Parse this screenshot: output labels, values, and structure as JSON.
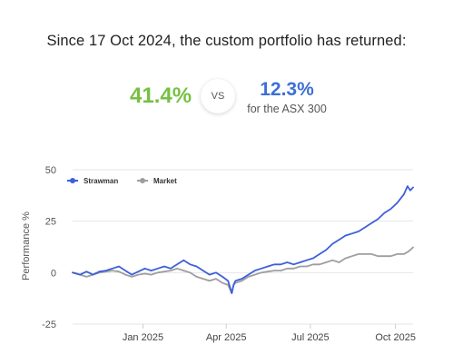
{
  "summary": {
    "headline": "Since 17 Oct 2024, the custom portfolio has returned:",
    "portfolio_return": "41.4%",
    "vs_label": "VS",
    "market_return": "12.3%",
    "market_caption": "for the ASX 300"
  },
  "colors": {
    "portfolio_green": "#76c043",
    "strawman_blue": "#3d5fd9",
    "market_gray": "#9e9e9e",
    "grid": "#e6e6e6"
  },
  "chart_data": {
    "type": "line",
    "ylabel": "Performance %",
    "xlabel": "",
    "ylim": [
      -25,
      50
    ],
    "yticks": [
      -25,
      0,
      25,
      50
    ],
    "xlim": [
      "2024-10-17",
      "2025-10-20"
    ],
    "xticks": [
      {
        "date": "2025-01-01",
        "label": "Jan 2025"
      },
      {
        "date": "2025-04-01",
        "label": "Apr 2025"
      },
      {
        "date": "2025-07-01",
        "label": "Jul 2025"
      },
      {
        "date": "2025-10-01",
        "label": "Oct 2025"
      }
    ],
    "grid": "horizontal",
    "legend_position": "top-left",
    "series": [
      {
        "name": "Strawman",
        "color": "#3d5fd9",
        "points": [
          [
            "2024-10-17",
            0
          ],
          [
            "2024-10-25",
            -1
          ],
          [
            "2024-11-01",
            0.5
          ],
          [
            "2024-11-08",
            -1
          ],
          [
            "2024-11-15",
            0.5
          ],
          [
            "2024-11-22",
            1
          ],
          [
            "2024-11-29",
            2
          ],
          [
            "2024-12-06",
            3
          ],
          [
            "2024-12-13",
            1
          ],
          [
            "2024-12-20",
            -1
          ],
          [
            "2024-12-27",
            0.5
          ],
          [
            "2025-01-03",
            2
          ],
          [
            "2025-01-10",
            1
          ],
          [
            "2025-01-17",
            2
          ],
          [
            "2025-01-24",
            3
          ],
          [
            "2025-01-31",
            2
          ],
          [
            "2025-02-07",
            4
          ],
          [
            "2025-02-14",
            6
          ],
          [
            "2025-02-21",
            4
          ],
          [
            "2025-02-28",
            3
          ],
          [
            "2025-03-07",
            1
          ],
          [
            "2025-03-14",
            -1
          ],
          [
            "2025-03-21",
            0
          ],
          [
            "2025-03-28",
            -2
          ],
          [
            "2025-04-03",
            -4
          ],
          [
            "2025-04-07",
            -10
          ],
          [
            "2025-04-09",
            -6
          ],
          [
            "2025-04-11",
            -4
          ],
          [
            "2025-04-18",
            -3
          ],
          [
            "2025-04-25",
            -1
          ],
          [
            "2025-05-02",
            1
          ],
          [
            "2025-05-09",
            2
          ],
          [
            "2025-05-16",
            3
          ],
          [
            "2025-05-23",
            4
          ],
          [
            "2025-05-30",
            4
          ],
          [
            "2025-06-06",
            5
          ],
          [
            "2025-06-13",
            4
          ],
          [
            "2025-06-20",
            5
          ],
          [
            "2025-06-27",
            6
          ],
          [
            "2025-07-04",
            7
          ],
          [
            "2025-07-11",
            9
          ],
          [
            "2025-07-18",
            11
          ],
          [
            "2025-07-25",
            14
          ],
          [
            "2025-08-01",
            16
          ],
          [
            "2025-08-08",
            18
          ],
          [
            "2025-08-15",
            19
          ],
          [
            "2025-08-22",
            20
          ],
          [
            "2025-08-29",
            22
          ],
          [
            "2025-09-05",
            24
          ],
          [
            "2025-09-12",
            26
          ],
          [
            "2025-09-19",
            29
          ],
          [
            "2025-09-26",
            31
          ],
          [
            "2025-10-03",
            34
          ],
          [
            "2025-10-10",
            38
          ],
          [
            "2025-10-14",
            42
          ],
          [
            "2025-10-17",
            40
          ],
          [
            "2025-10-20",
            41.4
          ]
        ]
      },
      {
        "name": "Market",
        "color": "#9e9e9e",
        "points": [
          [
            "2024-10-17",
            0
          ],
          [
            "2024-10-25",
            -1
          ],
          [
            "2024-11-01",
            -2
          ],
          [
            "2024-11-08",
            -1
          ],
          [
            "2024-11-15",
            0
          ],
          [
            "2024-11-22",
            0.5
          ],
          [
            "2024-11-29",
            1
          ],
          [
            "2024-12-06",
            0.5
          ],
          [
            "2024-12-13",
            -1
          ],
          [
            "2024-12-20",
            -2
          ],
          [
            "2024-12-27",
            -1
          ],
          [
            "2025-01-03",
            -0.5
          ],
          [
            "2025-01-10",
            -1
          ],
          [
            "2025-01-17",
            0
          ],
          [
            "2025-01-24",
            0.5
          ],
          [
            "2025-01-31",
            1
          ],
          [
            "2025-02-07",
            2
          ],
          [
            "2025-02-14",
            1
          ],
          [
            "2025-02-21",
            0
          ],
          [
            "2025-02-28",
            -2
          ],
          [
            "2025-03-07",
            -3
          ],
          [
            "2025-03-14",
            -4
          ],
          [
            "2025-03-21",
            -3
          ],
          [
            "2025-03-28",
            -5
          ],
          [
            "2025-04-03",
            -6
          ],
          [
            "2025-04-07",
            -10
          ],
          [
            "2025-04-09",
            -6
          ],
          [
            "2025-04-11",
            -5
          ],
          [
            "2025-04-18",
            -4
          ],
          [
            "2025-04-25",
            -2
          ],
          [
            "2025-05-02",
            -1
          ],
          [
            "2025-05-09",
            0
          ],
          [
            "2025-05-16",
            0.5
          ],
          [
            "2025-05-23",
            1
          ],
          [
            "2025-05-30",
            1
          ],
          [
            "2025-06-06",
            2
          ],
          [
            "2025-06-13",
            2
          ],
          [
            "2025-06-20",
            3
          ],
          [
            "2025-06-27",
            3
          ],
          [
            "2025-07-04",
            4
          ],
          [
            "2025-07-11",
            4
          ],
          [
            "2025-07-18",
            5
          ],
          [
            "2025-07-25",
            6
          ],
          [
            "2025-08-01",
            5
          ],
          [
            "2025-08-08",
            7
          ],
          [
            "2025-08-15",
            8
          ],
          [
            "2025-08-22",
            9
          ],
          [
            "2025-08-29",
            9
          ],
          [
            "2025-09-05",
            9
          ],
          [
            "2025-09-12",
            8
          ],
          [
            "2025-09-19",
            8
          ],
          [
            "2025-09-26",
            8
          ],
          [
            "2025-10-03",
            9
          ],
          [
            "2025-10-10",
            9
          ],
          [
            "2025-10-14",
            10
          ],
          [
            "2025-10-17",
            11
          ],
          [
            "2025-10-20",
            12.3
          ]
        ]
      }
    ]
  }
}
